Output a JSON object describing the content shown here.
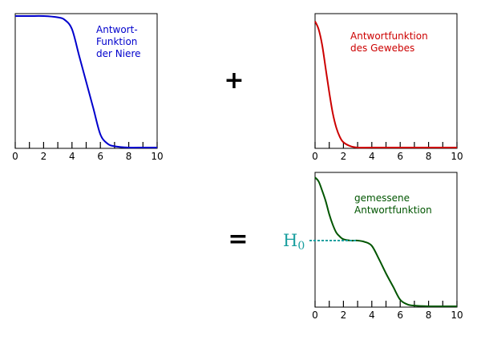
{
  "operators": {
    "plus": "+",
    "equals": "="
  },
  "h0_label": {
    "main": "H",
    "sub": "0"
  },
  "colors": {
    "blue": "#0000cc",
    "red": "#cc0000",
    "green": "#005500",
    "teal": "#1a9f9f"
  },
  "chart_data": [
    {
      "type": "line",
      "label_lines": [
        "Antwort-",
        "Funktion",
        "der Niere"
      ],
      "color": "#0000cc",
      "xlim": [
        0,
        10
      ],
      "x_ticks": [
        "0",
        "2",
        "4",
        "6",
        "8",
        "10"
      ],
      "x": [
        0,
        1,
        2,
        3,
        3.5,
        4,
        4.5,
        5,
        5.5,
        6,
        6.5,
        7,
        8,
        9,
        10
      ],
      "y": [
        1.0,
        1.0,
        1.0,
        0.99,
        0.97,
        0.9,
        0.7,
        0.5,
        0.3,
        0.1,
        0.03,
        0.01,
        0.0,
        0.0,
        0.0
      ]
    },
    {
      "type": "line",
      "label_lines": [
        "Antwortfunktion",
        "des Gewebes"
      ],
      "color": "#cc0000",
      "xlim": [
        0,
        10
      ],
      "x_ticks": [
        "0",
        "2",
        "4",
        "6",
        "8",
        "10"
      ],
      "x": [
        0,
        0.25,
        0.5,
        0.75,
        1,
        1.25,
        1.5,
        1.75,
        2,
        2.5,
        3,
        4,
        6,
        8,
        10
      ],
      "y": [
        0.96,
        0.9,
        0.78,
        0.6,
        0.42,
        0.26,
        0.15,
        0.08,
        0.04,
        0.01,
        0.0,
        0.0,
        0.0,
        0.0,
        0.0
      ]
    },
    {
      "type": "line",
      "label_lines": [
        "gemessene",
        "Antwortfunktion"
      ],
      "color": "#005500",
      "xlim": [
        0,
        10
      ],
      "x_ticks": [
        "0",
        "2",
        "4",
        "6",
        "8",
        "10"
      ],
      "x": [
        0,
        0.25,
        0.5,
        0.75,
        1,
        1.25,
        1.5,
        1.75,
        2,
        2.5,
        3,
        3.5,
        4,
        4.5,
        5,
        5.5,
        6,
        6.5,
        7,
        8,
        9,
        10
      ],
      "y": [
        0.98,
        0.95,
        0.88,
        0.8,
        0.7,
        0.62,
        0.56,
        0.53,
        0.51,
        0.5,
        0.5,
        0.49,
        0.46,
        0.36,
        0.25,
        0.15,
        0.05,
        0.015,
        0.005,
        0.0,
        0.0,
        0.0
      ]
    }
  ]
}
